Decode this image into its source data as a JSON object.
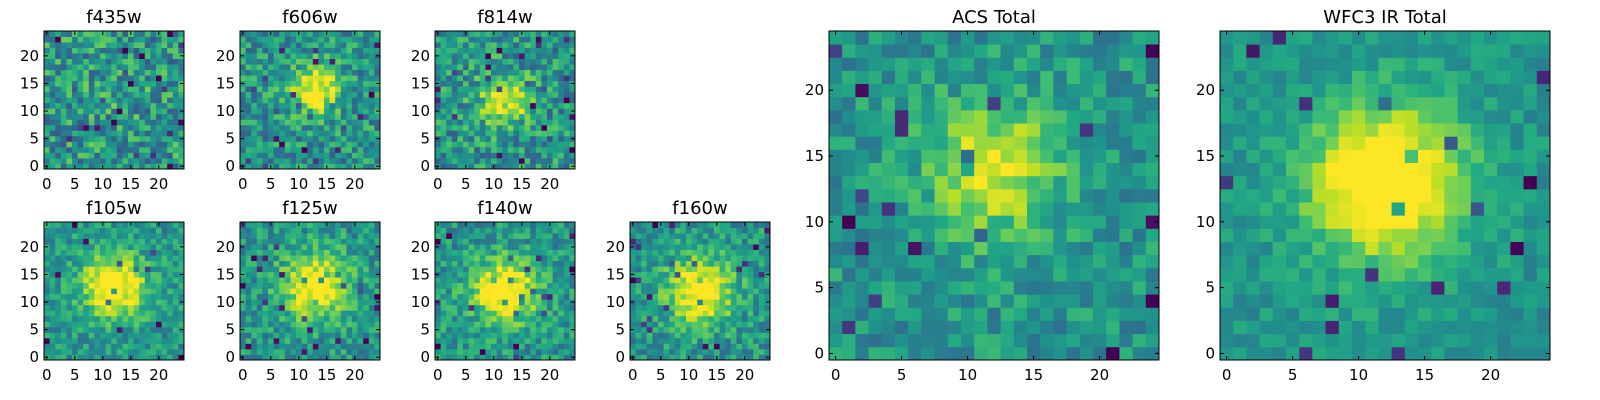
{
  "chart_data": [
    {
      "type": "heatmap",
      "id": "f435w",
      "title": "f435w",
      "grid_size": 25,
      "xlim": [
        -0.5,
        24.5
      ],
      "ylim": [
        -0.5,
        24.5
      ],
      "x_ticks": [
        0,
        5,
        10,
        15,
        20
      ],
      "y_ticks": [
        0,
        5,
        10,
        15,
        20
      ],
      "peak": {
        "x": 12,
        "y": 12,
        "sigma": 5,
        "amp": 0.05
      },
      "noise": 0.5,
      "seed": 11,
      "colormap": "viridis",
      "grid": false
    },
    {
      "type": "heatmap",
      "id": "f606w",
      "title": "f606w",
      "grid_size": 25,
      "xlim": [
        -0.5,
        24.5
      ],
      "ylim": [
        -0.5,
        24.5
      ],
      "x_ticks": [
        0,
        5,
        10,
        15,
        20
      ],
      "y_ticks": [
        0,
        5,
        10,
        15,
        20
      ],
      "peak": {
        "x": 13,
        "y": 14,
        "sigma": 3,
        "amp": 0.55
      },
      "noise": 0.42,
      "seed": 23,
      "colormap": "viridis",
      "grid": false
    },
    {
      "type": "heatmap",
      "id": "f814w",
      "title": "f814w",
      "grid_size": 25,
      "xlim": [
        -0.5,
        24.5
      ],
      "ylim": [
        -0.5,
        24.5
      ],
      "x_ticks": [
        0,
        5,
        10,
        15,
        20
      ],
      "y_ticks": [
        0,
        5,
        10,
        15,
        20
      ],
      "peak": {
        "x": 12,
        "y": 12,
        "sigma": 3,
        "amp": 0.5
      },
      "noise": 0.45,
      "seed": 37,
      "colormap": "viridis",
      "grid": false
    },
    {
      "type": "heatmap",
      "id": "f105w",
      "title": "f105w",
      "grid_size": 25,
      "xlim": [
        -0.5,
        24.5
      ],
      "ylim": [
        -0.5,
        24.5
      ],
      "x_ticks": [
        0,
        5,
        10,
        15,
        20
      ],
      "y_ticks": [
        0,
        5,
        10,
        15,
        20
      ],
      "peak": {
        "x": 12,
        "y": 13,
        "sigma": 4,
        "amp": 0.6
      },
      "noise": 0.32,
      "seed": 41,
      "colormap": "viridis",
      "grid": false
    },
    {
      "type": "heatmap",
      "id": "f125w",
      "title": "f125w",
      "grid_size": 25,
      "xlim": [
        -0.5,
        24.5
      ],
      "ylim": [
        -0.5,
        24.5
      ],
      "x_ticks": [
        0,
        5,
        10,
        15,
        20
      ],
      "y_ticks": [
        0,
        5,
        10,
        15,
        20
      ],
      "peak": {
        "x": 13,
        "y": 13,
        "sigma": 4,
        "amp": 0.6
      },
      "noise": 0.35,
      "seed": 53,
      "colormap": "viridis",
      "grid": false
    },
    {
      "type": "heatmap",
      "id": "f140w",
      "title": "f140w",
      "grid_size": 25,
      "xlim": [
        -0.5,
        24.5
      ],
      "ylim": [
        -0.5,
        24.5
      ],
      "x_ticks": [
        0,
        5,
        10,
        15,
        20
      ],
      "y_ticks": [
        0,
        5,
        10,
        15,
        20
      ],
      "peak": {
        "x": 12,
        "y": 12,
        "sigma": 4,
        "amp": 0.6
      },
      "noise": 0.35,
      "seed": 67,
      "colormap": "viridis",
      "grid": false
    },
    {
      "type": "heatmap",
      "id": "f160w",
      "title": "f160w",
      "grid_size": 25,
      "xlim": [
        -0.5,
        24.5
      ],
      "ylim": [
        -0.5,
        24.5
      ],
      "x_ticks": [
        0,
        5,
        10,
        15,
        20
      ],
      "y_ticks": [
        0,
        5,
        10,
        15,
        20
      ],
      "peak": {
        "x": 12,
        "y": 12,
        "sigma": 4,
        "amp": 0.6
      },
      "noise": 0.35,
      "seed": 79,
      "colormap": "viridis",
      "grid": false
    },
    {
      "type": "heatmap",
      "id": "acs-total",
      "title": "ACS Total",
      "grid_size": 25,
      "xlim": [
        -0.5,
        24.5
      ],
      "ylim": [
        -0.5,
        24.5
      ],
      "x_ticks": [
        0,
        5,
        10,
        15,
        20
      ],
      "y_ticks": [
        0,
        5,
        10,
        15,
        20
      ],
      "peak": {
        "x": 12,
        "y": 14,
        "sigma": 3.5,
        "amp": 0.45
      },
      "noise": 0.3,
      "seed": 89,
      "colormap": "viridis",
      "grid": false
    },
    {
      "type": "heatmap",
      "id": "wfc3-ir-total",
      "title": "WFC3 IR Total",
      "grid_size": 25,
      "xlim": [
        -0.5,
        24.5
      ],
      "ylim": [
        -0.5,
        24.5
      ],
      "x_ticks": [
        0,
        5,
        10,
        15,
        20
      ],
      "y_ticks": [
        0,
        5,
        10,
        15,
        20
      ],
      "peak": {
        "x": 12,
        "y": 13,
        "sigma": 4,
        "amp": 0.7
      },
      "noise": 0.2,
      "seed": 97,
      "colormap": "viridis",
      "grid": false
    }
  ]
}
